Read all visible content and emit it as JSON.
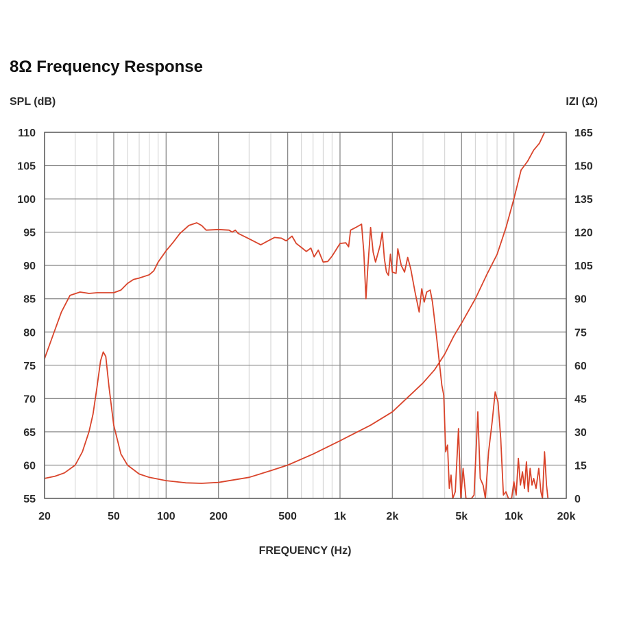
{
  "header": {
    "title": "8Ω Frequency Response"
  },
  "chart_data": {
    "type": "line",
    "title": "8Ω Frequency Response",
    "xlabel": "FREQUENCY (Hz)",
    "ylabel_left": "SPL (dB)",
    "ylabel_right": "IZI (Ω)",
    "x_scale": "log",
    "xlim": [
      20,
      20000
    ],
    "ylim_left": [
      55,
      110
    ],
    "ylim_right": [
      0,
      165
    ],
    "grid": true,
    "x_ticks": [
      {
        "value": 20,
        "label": "20"
      },
      {
        "value": 50,
        "label": "50"
      },
      {
        "value": 100,
        "label": "100"
      },
      {
        "value": 200,
        "label": "200"
      },
      {
        "value": 500,
        "label": "500"
      },
      {
        "value": 1000,
        "label": "1k"
      },
      {
        "value": 2000,
        "label": "2k"
      },
      {
        "value": 5000,
        "label": "5k"
      },
      {
        "value": 10000,
        "label": "10k"
      },
      {
        "value": 20000,
        "label": "20k"
      }
    ],
    "y_left_ticks": [
      "55",
      "60",
      "65",
      "70",
      "75",
      "80",
      "85",
      "90",
      "95",
      "100",
      "105",
      "110"
    ],
    "y_right_ticks": [
      "0",
      "15",
      "30",
      "45",
      "60",
      "75",
      "90",
      "105",
      "120",
      "135",
      "150",
      "165"
    ],
    "series": [
      {
        "axis": "left",
        "color": "#d9442b",
        "points": [
          [
            20,
            76
          ],
          [
            22,
            79
          ],
          [
            25,
            83
          ],
          [
            28,
            85.5
          ],
          [
            32,
            86
          ],
          [
            36,
            85.8
          ],
          [
            40,
            85.9
          ],
          [
            45,
            85.9
          ],
          [
            50,
            85.9
          ],
          [
            55,
            86.3
          ],
          [
            60,
            87.3
          ],
          [
            65,
            87.9
          ],
          [
            70,
            88.1
          ],
          [
            80,
            88.6
          ],
          [
            85,
            89.2
          ],
          [
            90,
            90.5
          ],
          [
            100,
            92.2
          ],
          [
            110,
            93.5
          ],
          [
            120,
            94.8
          ],
          [
            135,
            96
          ],
          [
            150,
            96.4
          ],
          [
            160,
            96
          ],
          [
            170,
            95.3
          ],
          [
            200,
            95.4
          ],
          [
            230,
            95.3
          ],
          [
            240,
            95
          ],
          [
            250,
            95.3
          ],
          [
            260,
            94.8
          ],
          [
            300,
            94
          ],
          [
            350,
            93.1
          ],
          [
            380,
            93.6
          ],
          [
            420,
            94.2
          ],
          [
            460,
            94.1
          ],
          [
            490,
            93.7
          ],
          [
            530,
            94.4
          ],
          [
            560,
            93.3
          ],
          [
            600,
            92.7
          ],
          [
            640,
            92.1
          ],
          [
            680,
            92.6
          ],
          [
            710,
            91.3
          ],
          [
            750,
            92.3
          ],
          [
            800,
            90.5
          ],
          [
            850,
            90.6
          ],
          [
            900,
            91.4
          ],
          [
            1000,
            93.3
          ],
          [
            1080,
            93.4
          ],
          [
            1120,
            92.8
          ],
          [
            1150,
            95.3
          ],
          [
            1250,
            95.8
          ],
          [
            1330,
            96.2
          ],
          [
            1370,
            92
          ],
          [
            1410,
            85
          ],
          [
            1440,
            89
          ],
          [
            1500,
            95.7
          ],
          [
            1550,
            92
          ],
          [
            1600,
            90.5
          ],
          [
            1700,
            93
          ],
          [
            1750,
            95
          ],
          [
            1800,
            91
          ],
          [
            1850,
            89
          ],
          [
            1900,
            88.5
          ],
          [
            1950,
            91.7
          ],
          [
            2000,
            89
          ],
          [
            2100,
            88.8
          ],
          [
            2150,
            92.5
          ],
          [
            2250,
            90
          ],
          [
            2350,
            89
          ],
          [
            2450,
            91.2
          ],
          [
            2550,
            89.5
          ],
          [
            2700,
            86
          ],
          [
            2850,
            83
          ],
          [
            2950,
            86.5
          ],
          [
            3050,
            84.5
          ],
          [
            3150,
            86
          ],
          [
            3300,
            86.3
          ],
          [
            3400,
            84.5
          ],
          [
            3600,
            79
          ],
          [
            3850,
            72
          ],
          [
            3950,
            70.5
          ],
          [
            4050,
            62
          ],
          [
            4150,
            63
          ],
          [
            4250,
            56.5
          ],
          [
            4350,
            58.5
          ],
          [
            4450,
            55
          ],
          [
            4600,
            56
          ],
          [
            4800,
            65.5
          ],
          [
            4950,
            55
          ],
          [
            5100,
            59.5
          ],
          [
            5300,
            55
          ],
          [
            5700,
            55
          ],
          [
            5900,
            55.5
          ],
          [
            6200,
            68
          ],
          [
            6400,
            58
          ],
          [
            6650,
            57
          ],
          [
            6850,
            55
          ],
          [
            7150,
            62
          ],
          [
            7500,
            66.5
          ],
          [
            7800,
            71
          ],
          [
            8100,
            69.5
          ],
          [
            8400,
            64
          ],
          [
            8700,
            55.5
          ],
          [
            9000,
            56
          ],
          [
            9300,
            55
          ],
          [
            9700,
            55
          ],
          [
            10000,
            57.5
          ],
          [
            10300,
            55.5
          ],
          [
            10600,
            61
          ],
          [
            10900,
            57
          ],
          [
            11200,
            59
          ],
          [
            11500,
            56.5
          ],
          [
            11800,
            60.5
          ],
          [
            12100,
            56
          ],
          [
            12400,
            59.5
          ],
          [
            12700,
            57
          ],
          [
            13000,
            58
          ],
          [
            13400,
            56.5
          ],
          [
            13900,
            59.5
          ],
          [
            14300,
            56
          ],
          [
            14600,
            55
          ],
          [
            15000,
            62
          ],
          [
            15400,
            57
          ],
          [
            15700,
            55
          ]
        ]
      },
      {
        "axis": "right",
        "color": "#d9442b",
        "points": [
          [
            20,
            9
          ],
          [
            23,
            10
          ],
          [
            26,
            11.5
          ],
          [
            30,
            15
          ],
          [
            33,
            21
          ],
          [
            36,
            30
          ],
          [
            38,
            38
          ],
          [
            40,
            50
          ],
          [
            42,
            62
          ],
          [
            43.5,
            66
          ],
          [
            45,
            64
          ],
          [
            47,
            50
          ],
          [
            50,
            33
          ],
          [
            55,
            20
          ],
          [
            60,
            15
          ],
          [
            70,
            11
          ],
          [
            80,
            9.5
          ],
          [
            100,
            8
          ],
          [
            130,
            7
          ],
          [
            160,
            6.8
          ],
          [
            200,
            7.2
          ],
          [
            300,
            9.5
          ],
          [
            400,
            12.5
          ],
          [
            500,
            15
          ],
          [
            700,
            20
          ],
          [
            1000,
            26
          ],
          [
            1500,
            33
          ],
          [
            2000,
            39
          ],
          [
            3000,
            52
          ],
          [
            3500,
            58
          ],
          [
            4000,
            65
          ],
          [
            4500,
            73
          ],
          [
            5000,
            79
          ],
          [
            6000,
            90
          ],
          [
            7000,
            101
          ],
          [
            8000,
            110
          ],
          [
            9000,
            122
          ],
          [
            10000,
            135
          ],
          [
            11000,
            148
          ],
          [
            12000,
            152
          ],
          [
            13000,
            157
          ],
          [
            14000,
            160
          ],
          [
            15000,
            165
          ]
        ]
      }
    ]
  }
}
